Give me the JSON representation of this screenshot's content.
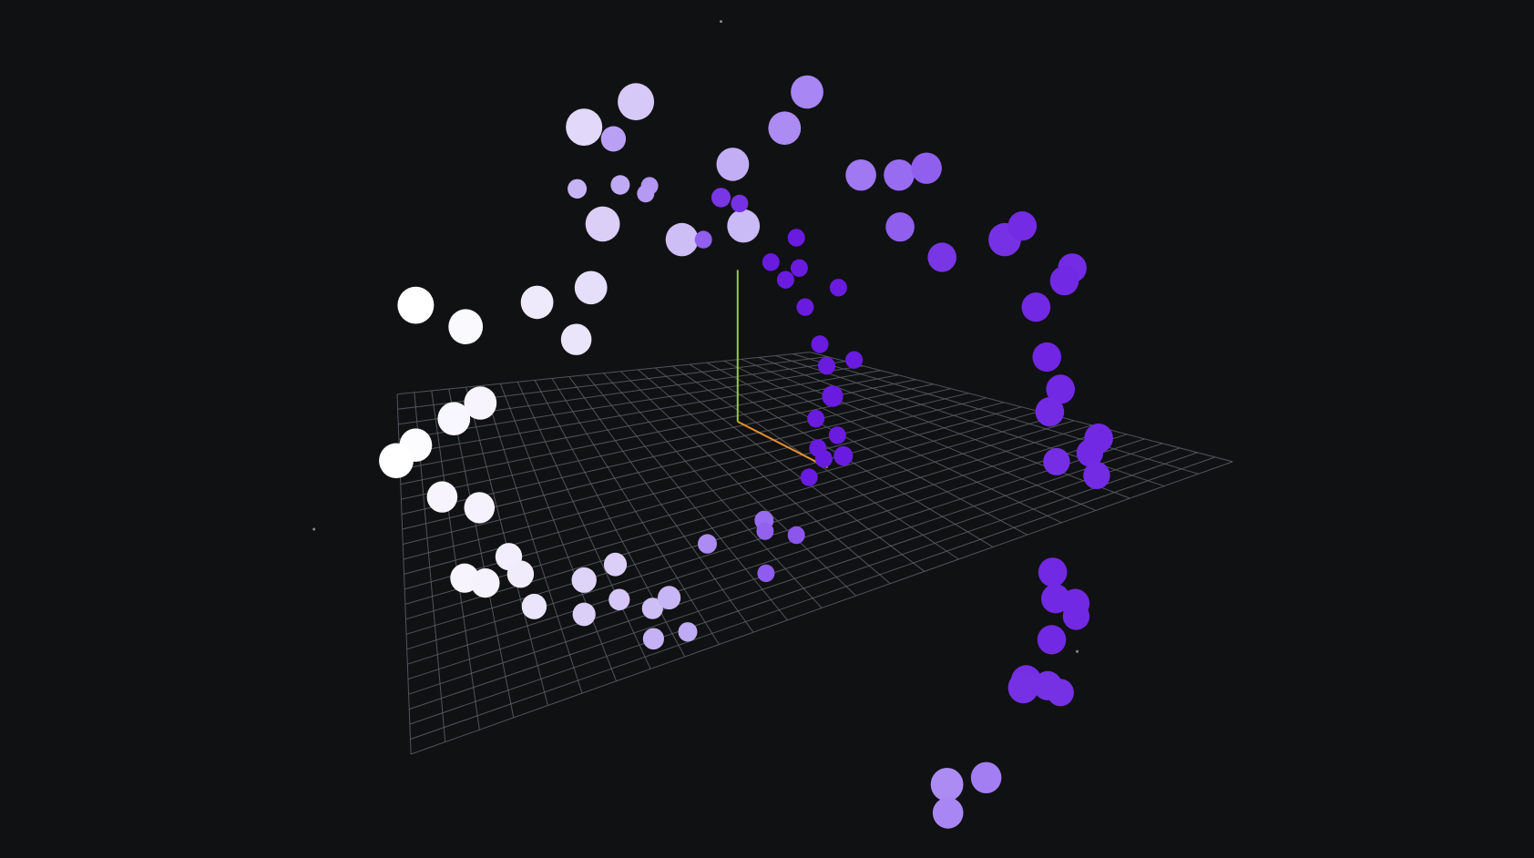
{
  "scene": {
    "background_color": "#101112",
    "grid_color": "#5b6068",
    "axis_colors": {
      "x": "#e8902a",
      "y": "#9acd32"
    },
    "point_color_gradient": [
      "#ffffff",
      "#c8b7f5",
      "#9d75f2",
      "#6a1be0"
    ],
    "point_count": 112,
    "has_grid_floor": true,
    "has_axes_helper": true
  }
}
